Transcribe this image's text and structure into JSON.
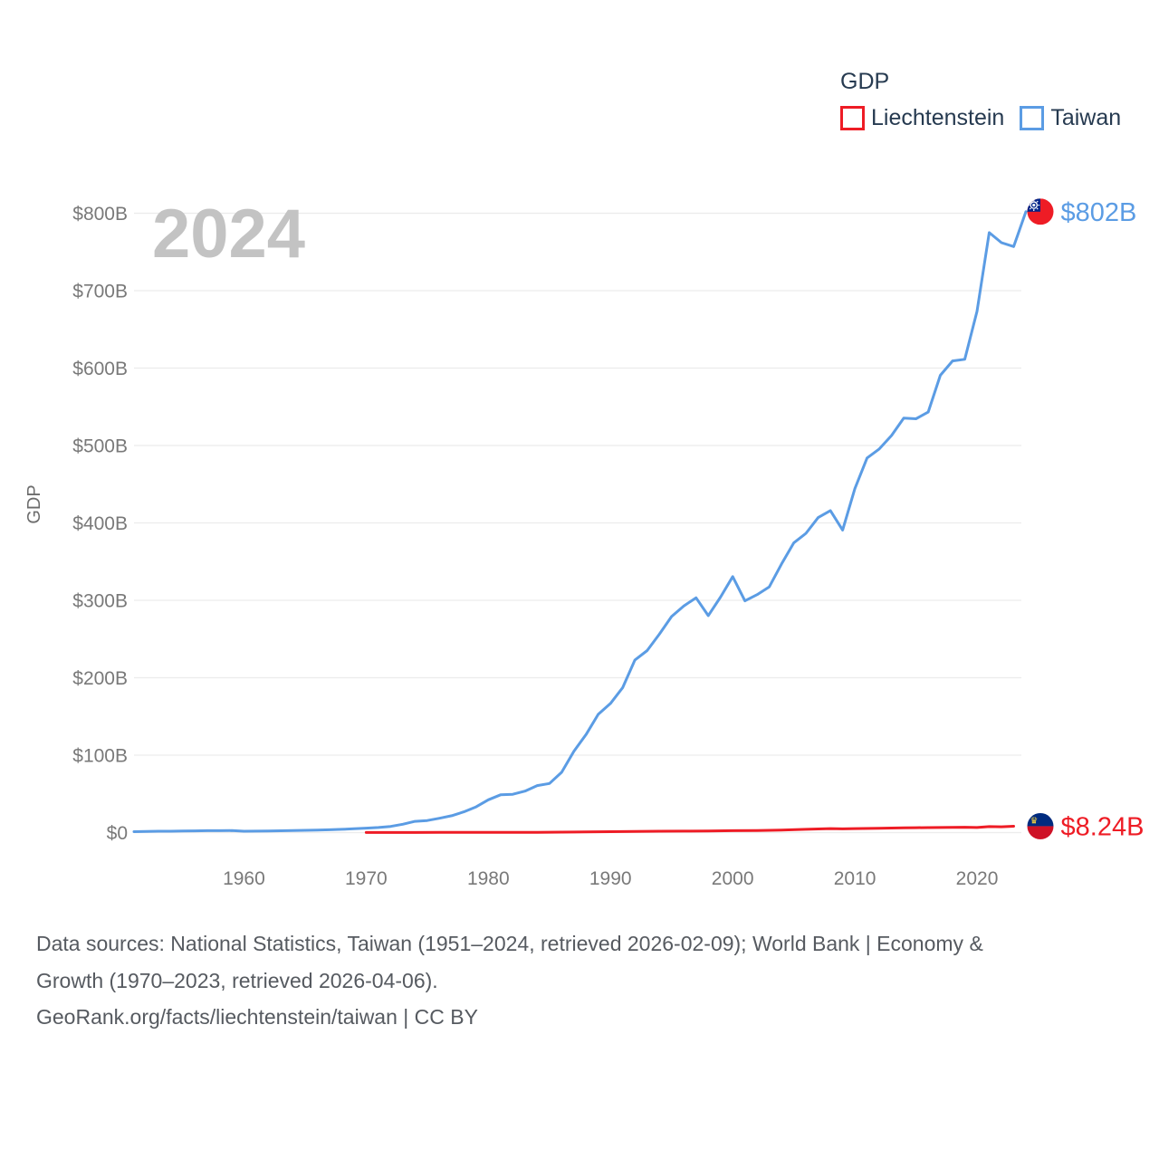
{
  "page": {
    "background": "#ffffff"
  },
  "watermark": {
    "text": "2024",
    "color": "#c3c3c3"
  },
  "legend": {
    "title": "GDP",
    "items": [
      {
        "label": "Liechtenstein",
        "color": "#ee1c25"
      },
      {
        "label": "Taiwan",
        "color": "#5b9ce4"
      }
    ]
  },
  "chart_data": {
    "type": "line",
    "title": "GDP",
    "xlabel": "",
    "ylabel": "GDP",
    "xlim": [
      1951,
      2024
    ],
    "ylim": [
      0,
      800
    ],
    "grid": "horizontal",
    "grid_color": "#ececec",
    "axis_text_color": "#797979",
    "axis_title_color": "#6c6c6c",
    "x_ticks": [
      1960,
      1970,
      1980,
      1990,
      2000,
      2010,
      2020
    ],
    "y_tick_values": [
      0,
      100,
      200,
      300,
      400,
      500,
      600,
      700,
      800
    ],
    "y_tick_labels": [
      "$0",
      "$100B",
      "$200B",
      "$300B",
      "$400B",
      "$500B",
      "$600B",
      "$700B",
      "$800B"
    ],
    "legend_position": "top-right",
    "series": [
      {
        "name": "Taiwan",
        "color": "#5b9ce4",
        "end_label": "$802B",
        "end_value_billions": 802,
        "flag": "taiwan",
        "points": [
          [
            1951,
            1.2
          ],
          [
            1952,
            1.5
          ],
          [
            1953,
            1.7
          ],
          [
            1954,
            1.8
          ],
          [
            1955,
            2.0
          ],
          [
            1956,
            2.2
          ],
          [
            1957,
            2.4
          ],
          [
            1958,
            2.5
          ],
          [
            1959,
            2.6
          ],
          [
            1960,
            1.7
          ],
          [
            1961,
            1.9
          ],
          [
            1962,
            2.0
          ],
          [
            1963,
            2.3
          ],
          [
            1964,
            2.6
          ],
          [
            1965,
            2.9
          ],
          [
            1966,
            3.2
          ],
          [
            1967,
            3.6
          ],
          [
            1968,
            4.2
          ],
          [
            1969,
            4.9
          ],
          [
            1970,
            5.7
          ],
          [
            1971,
            6.6
          ],
          [
            1972,
            8.0
          ],
          [
            1973,
            10.8
          ],
          [
            1974,
            14.5
          ],
          [
            1975,
            15.5
          ],
          [
            1976,
            18.5
          ],
          [
            1977,
            21.7
          ],
          [
            1978,
            26.8
          ],
          [
            1979,
            33.2
          ],
          [
            1980,
            42.3
          ],
          [
            1981,
            48.8
          ],
          [
            1982,
            49.5
          ],
          [
            1983,
            53.6
          ],
          [
            1984,
            60.7
          ],
          [
            1985,
            63.4
          ],
          [
            1986,
            77.9
          ],
          [
            1987,
            105.0
          ],
          [
            1988,
            126.5
          ],
          [
            1989,
            152.7
          ],
          [
            1990,
            166.8
          ],
          [
            1991,
            187.3
          ],
          [
            1992,
            222.9
          ],
          [
            1993,
            235.1
          ],
          [
            1994,
            256.3
          ],
          [
            1995,
            279.1
          ],
          [
            1996,
            292.7
          ],
          [
            1997,
            303.3
          ],
          [
            1998,
            280.2
          ],
          [
            1999,
            304.1
          ],
          [
            2000,
            330.7
          ],
          [
            2001,
            299.3
          ],
          [
            2002,
            307.4
          ],
          [
            2003,
            317.4
          ],
          [
            2004,
            346.9
          ],
          [
            2005,
            374.1
          ],
          [
            2006,
            386.5
          ],
          [
            2007,
            406.9
          ],
          [
            2008,
            415.9
          ],
          [
            2009,
            390.8
          ],
          [
            2010,
            444.2
          ],
          [
            2011,
            483.9
          ],
          [
            2012,
            495.6
          ],
          [
            2013,
            512.9
          ],
          [
            2014,
            535.3
          ],
          [
            2015,
            534.5
          ],
          [
            2016,
            543.1
          ],
          [
            2017,
            590.7
          ],
          [
            2018,
            609.2
          ],
          [
            2019,
            611.4
          ],
          [
            2020,
            673.2
          ],
          [
            2021,
            775.0
          ],
          [
            2022,
            762.0
          ],
          [
            2023,
            757.0
          ],
          [
            2024,
            802.0
          ]
        ]
      },
      {
        "name": "Liechtenstein",
        "color": "#ee1c25",
        "end_label": "$8.24B",
        "end_value_billions": 8.24,
        "flag": "liechtenstein",
        "points": [
          [
            1970,
            0.07
          ],
          [
            1972,
            0.1
          ],
          [
            1974,
            0.15
          ],
          [
            1976,
            0.2
          ],
          [
            1978,
            0.26
          ],
          [
            1980,
            0.33
          ],
          [
            1982,
            0.35
          ],
          [
            1984,
            0.4
          ],
          [
            1986,
            0.55
          ],
          [
            1988,
            0.8
          ],
          [
            1990,
            1.18
          ],
          [
            1992,
            1.4
          ],
          [
            1994,
            1.7
          ],
          [
            1996,
            1.9
          ],
          [
            1998,
            2.1
          ],
          [
            2000,
            2.48
          ],
          [
            2002,
            2.7
          ],
          [
            2004,
            3.3
          ],
          [
            2006,
            4.2
          ],
          [
            2008,
            5.2
          ],
          [
            2009,
            4.8
          ],
          [
            2010,
            5.1
          ],
          [
            2012,
            5.5
          ],
          [
            2014,
            6.1
          ],
          [
            2015,
            6.3
          ],
          [
            2016,
            6.4
          ],
          [
            2017,
            6.5
          ],
          [
            2018,
            6.7
          ],
          [
            2019,
            6.9
          ],
          [
            2020,
            6.6
          ],
          [
            2021,
            7.7
          ],
          [
            2022,
            7.5
          ],
          [
            2023,
            8.24
          ]
        ]
      }
    ]
  },
  "flags": {
    "taiwan": {
      "field": "#ee1c25",
      "canton": "#002387",
      "sun": "#ffffff"
    },
    "liechtenstein": {
      "top": "#002b7f",
      "bottom": "#ce1126",
      "crown": "#ffd83d"
    }
  },
  "footer": {
    "line1": "Data sources: National Statistics, Taiwan (1951–2024, retrieved 2026-02-09); World Bank | Economy &",
    "line2": "Growth (1970–2023, retrieved 2026-04-06).",
    "line3": "GeoRank.org/facts/liechtenstein/taiwan | CC BY"
  }
}
